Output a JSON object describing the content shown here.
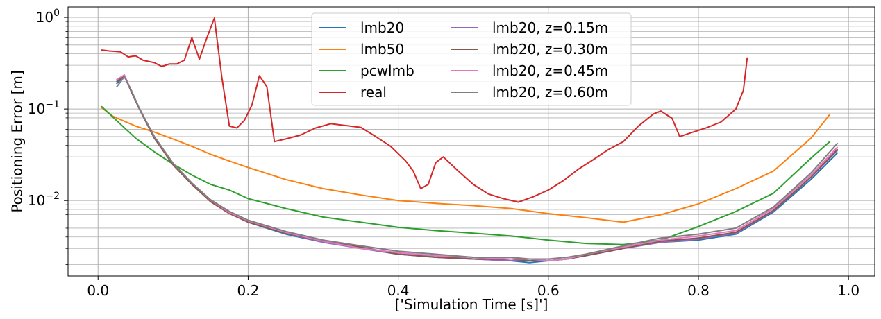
{
  "chart_data": {
    "type": "line",
    "title": "",
    "xlabel": "['Simulation Time [s]']",
    "ylabel": "Positioning Error [m]",
    "xlim": [
      -0.04,
      1.035
    ],
    "ylim": [
      0.0015,
      1.3
    ],
    "yscale": "log",
    "grid": "major and minor",
    "legend": "upper center, 2 columns",
    "x_ticks": [
      0.0,
      0.2,
      0.4,
      0.6,
      0.8,
      1.0
    ],
    "x_tick_labels": [
      "0.0",
      "0.2",
      "0.4",
      "0.6",
      "0.8",
      "1.0"
    ],
    "y_ticks": [
      0.01,
      0.1,
      1.0
    ],
    "y_tick_labels": [
      {
        "base": "10",
        "exp": "−2"
      },
      {
        "base": "10",
        "exp": "−1"
      },
      {
        "base": "10",
        "exp": "0"
      }
    ],
    "series": [
      {
        "name": "lmb20",
        "color": "#1f77b4",
        "x": [
          0.025,
          0.035,
          0.045,
          0.055,
          0.075,
          0.1,
          0.125,
          0.15,
          0.175,
          0.2,
          0.25,
          0.3,
          0.35,
          0.4,
          0.45,
          0.5,
          0.55,
          0.575,
          0.6,
          0.625,
          0.65,
          0.7,
          0.75,
          0.8,
          0.85,
          0.9,
          0.95,
          0.985
        ],
        "y": [
          0.19,
          0.23,
          0.15,
          0.1,
          0.048,
          0.025,
          0.015,
          0.0098,
          0.0073,
          0.0058,
          0.0043,
          0.0035,
          0.003,
          0.0026,
          0.0024,
          0.0023,
          0.0022,
          0.0021,
          0.0022,
          0.0023,
          0.0025,
          0.003,
          0.0035,
          0.0037,
          0.0043,
          0.0075,
          0.017,
          0.033
        ]
      },
      {
        "name": "lmb50",
        "color": "#ff7f0e",
        "x": [
          0.005,
          0.02,
          0.05,
          0.075,
          0.1,
          0.125,
          0.15,
          0.175,
          0.2,
          0.25,
          0.3,
          0.35,
          0.4,
          0.45,
          0.5,
          0.55,
          0.6,
          0.65,
          0.7,
          0.75,
          0.8,
          0.85,
          0.9,
          0.95,
          0.975
        ],
        "y": [
          0.103,
          0.083,
          0.065,
          0.056,
          0.047,
          0.039,
          0.032,
          0.027,
          0.023,
          0.017,
          0.0135,
          0.0115,
          0.01,
          0.0093,
          0.0088,
          0.0082,
          0.0072,
          0.0065,
          0.0058,
          0.007,
          0.0092,
          0.0135,
          0.021,
          0.048,
          0.087
        ]
      },
      {
        "name": "pcwlmb",
        "color": "#2ca02c",
        "x": [
          0.005,
          0.03,
          0.05,
          0.075,
          0.1,
          0.125,
          0.15,
          0.175,
          0.2,
          0.25,
          0.3,
          0.35,
          0.4,
          0.45,
          0.5,
          0.55,
          0.6,
          0.65,
          0.7,
          0.75,
          0.8,
          0.85,
          0.9,
          0.95,
          0.975
        ],
        "y": [
          0.106,
          0.068,
          0.048,
          0.034,
          0.025,
          0.019,
          0.015,
          0.013,
          0.0105,
          0.0082,
          0.0066,
          0.0058,
          0.0051,
          0.0047,
          0.0044,
          0.0041,
          0.0037,
          0.0034,
          0.0033,
          0.0037,
          0.0052,
          0.0076,
          0.012,
          0.029,
          0.044
        ]
      },
      {
        "name": "real",
        "color": "#d62728",
        "x": [
          0.005,
          0.015,
          0.03,
          0.04,
          0.05,
          0.06,
          0.075,
          0.085,
          0.095,
          0.105,
          0.115,
          0.125,
          0.135,
          0.145,
          0.155,
          0.165,
          0.175,
          0.185,
          0.195,
          0.205,
          0.215,
          0.225,
          0.235,
          0.25,
          0.27,
          0.29,
          0.31,
          0.33,
          0.35,
          0.37,
          0.39,
          0.41,
          0.42,
          0.43,
          0.44,
          0.45,
          0.46,
          0.48,
          0.5,
          0.52,
          0.54,
          0.56,
          0.58,
          0.6,
          0.62,
          0.64,
          0.66,
          0.68,
          0.7,
          0.72,
          0.74,
          0.75,
          0.765,
          0.775,
          0.79,
          0.81,
          0.83,
          0.85,
          0.86,
          0.865
        ],
        "y": [
          0.44,
          0.43,
          0.42,
          0.37,
          0.38,
          0.34,
          0.32,
          0.29,
          0.31,
          0.31,
          0.34,
          0.6,
          0.35,
          0.6,
          0.98,
          0.22,
          0.065,
          0.062,
          0.075,
          0.11,
          0.23,
          0.175,
          0.044,
          0.047,
          0.052,
          0.062,
          0.069,
          0.066,
          0.063,
          0.05,
          0.039,
          0.027,
          0.021,
          0.0135,
          0.015,
          0.026,
          0.03,
          0.021,
          0.015,
          0.0118,
          0.0105,
          0.0096,
          0.011,
          0.013,
          0.0165,
          0.022,
          0.028,
          0.036,
          0.044,
          0.065,
          0.088,
          0.095,
          0.079,
          0.05,
          0.055,
          0.062,
          0.072,
          0.1,
          0.16,
          0.36
        ]
      },
      {
        "name": "lmb20, z=0.15m",
        "color": "#9467bd",
        "x": [
          0.025,
          0.035,
          0.045,
          0.055,
          0.075,
          0.1,
          0.125,
          0.15,
          0.175,
          0.2,
          0.25,
          0.3,
          0.35,
          0.4,
          0.45,
          0.5,
          0.55,
          0.575,
          0.6,
          0.625,
          0.65,
          0.7,
          0.75,
          0.8,
          0.85,
          0.9,
          0.95,
          0.985
        ],
        "y": [
          0.2,
          0.235,
          0.152,
          0.1,
          0.049,
          0.025,
          0.0152,
          0.0099,
          0.0074,
          0.0059,
          0.0044,
          0.0035,
          0.003,
          0.0026,
          0.0025,
          0.0023,
          0.0022,
          0.0022,
          0.0022,
          0.0023,
          0.0025,
          0.003,
          0.0035,
          0.0038,
          0.0044,
          0.0077,
          0.018,
          0.035
        ]
      },
      {
        "name": "lmb20, z=0.30m",
        "color": "#8c564b",
        "x": [
          0.025,
          0.035,
          0.045,
          0.055,
          0.075,
          0.1,
          0.125,
          0.15,
          0.175,
          0.2,
          0.25,
          0.3,
          0.35,
          0.4,
          0.45,
          0.5,
          0.55,
          0.575,
          0.6,
          0.625,
          0.65,
          0.7,
          0.75,
          0.8,
          0.85,
          0.9,
          0.95,
          0.985
        ],
        "y": [
          0.2,
          0.23,
          0.15,
          0.1,
          0.048,
          0.0245,
          0.015,
          0.0097,
          0.0072,
          0.0058,
          0.0044,
          0.0036,
          0.0031,
          0.0026,
          0.0024,
          0.0023,
          0.0023,
          0.0022,
          0.0022,
          0.0023,
          0.0025,
          0.003,
          0.0036,
          0.0039,
          0.0045,
          0.0078,
          0.018,
          0.036
        ]
      },
      {
        "name": "lmb20, z=0.45m",
        "color": "#e377c2",
        "x": [
          0.025,
          0.035,
          0.045,
          0.055,
          0.075,
          0.1,
          0.125,
          0.15,
          0.175,
          0.2,
          0.25,
          0.3,
          0.35,
          0.4,
          0.45,
          0.5,
          0.55,
          0.575,
          0.6,
          0.625,
          0.65,
          0.7,
          0.75,
          0.8,
          0.85,
          0.9,
          0.95,
          0.985
        ],
        "y": [
          0.21,
          0.235,
          0.155,
          0.102,
          0.05,
          0.0255,
          0.0155,
          0.0101,
          0.0074,
          0.006,
          0.0045,
          0.0036,
          0.003,
          0.0027,
          0.0025,
          0.0024,
          0.0023,
          0.0023,
          0.0022,
          0.0023,
          0.0026,
          0.0031,
          0.0037,
          0.0041,
          0.0047,
          0.0082,
          0.019,
          0.038
        ]
      },
      {
        "name": "lmb20, z=0.60m",
        "color": "#7f7f7f",
        "x": [
          0.025,
          0.035,
          0.045,
          0.055,
          0.075,
          0.1,
          0.125,
          0.15,
          0.175,
          0.2,
          0.25,
          0.3,
          0.35,
          0.4,
          0.45,
          0.5,
          0.55,
          0.575,
          0.6,
          0.625,
          0.65,
          0.7,
          0.75,
          0.8,
          0.85,
          0.9,
          0.95,
          0.985
        ],
        "y": [
          0.175,
          0.225,
          0.155,
          0.101,
          0.05,
          0.0255,
          0.0155,
          0.0102,
          0.0076,
          0.0061,
          0.0046,
          0.0037,
          0.0032,
          0.0028,
          0.0026,
          0.0024,
          0.0024,
          0.0023,
          0.0023,
          0.0024,
          0.0026,
          0.0032,
          0.0039,
          0.0043,
          0.005,
          0.0085,
          0.02,
          0.042
        ]
      }
    ]
  }
}
